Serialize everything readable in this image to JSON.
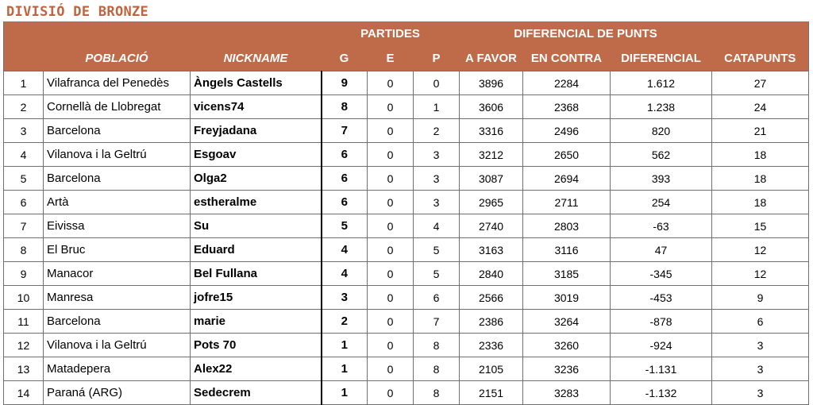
{
  "title": "DIVISIÓ DE BRONZE",
  "header": {
    "group_partides": "PARTIDES",
    "group_diferencial": "DIFERENCIAL DE PUNTS",
    "columns": [
      "",
      "POBLACIÓ",
      "NICKNAME",
      "G",
      "E",
      "P",
      "A FAVOR",
      "EN CONTRA",
      "DIFERENCIAL",
      "CATAPUNTS"
    ]
  },
  "colors": {
    "header_bg": "#bf6a48",
    "title": "#c0633f"
  },
  "rows": [
    {
      "rank": "1",
      "city": "Vilafranca del Penedès",
      "nickname": "Àngels Castells",
      "g": "9",
      "e": "0",
      "p": "0",
      "favor": "3896",
      "contra": "2284",
      "diferencial": "1.612",
      "catapunts": "27"
    },
    {
      "rank": "2",
      "city": "Cornellà de Llobregat",
      "nickname": "vicens74",
      "g": "8",
      "e": "0",
      "p": "1",
      "favor": "3606",
      "contra": "2368",
      "diferencial": "1.238",
      "catapunts": "24"
    },
    {
      "rank": "3",
      "city": "Barcelona",
      "nickname": "Freyjadana",
      "g": "7",
      "e": "0",
      "p": "2",
      "favor": "3316",
      "contra": "2496",
      "diferencial": "820",
      "catapunts": "21"
    },
    {
      "rank": "4",
      "city": "Vilanova i la Geltrú",
      "nickname": "Esgoav",
      "g": "6",
      "e": "0",
      "p": "3",
      "favor": "3212",
      "contra": "2650",
      "diferencial": "562",
      "catapunts": "18"
    },
    {
      "rank": "5",
      "city": "Barcelona",
      "nickname": "Olga2",
      "g": "6",
      "e": "0",
      "p": "3",
      "favor": "3087",
      "contra": "2694",
      "diferencial": "393",
      "catapunts": "18"
    },
    {
      "rank": "6",
      "city": "Artà",
      "nickname": "estheralme",
      "g": "6",
      "e": "0",
      "p": "3",
      "favor": "2965",
      "contra": "2711",
      "diferencial": "254",
      "catapunts": "18"
    },
    {
      "rank": "7",
      "city": "Eivissa",
      "nickname": "Su",
      "g": "5",
      "e": "0",
      "p": "4",
      "favor": "2740",
      "contra": "2803",
      "diferencial": "-63",
      "catapunts": "15"
    },
    {
      "rank": "8",
      "city": "El Bruc",
      "nickname": "Eduard",
      "g": "4",
      "e": "0",
      "p": "5",
      "favor": "3163",
      "contra": "3116",
      "diferencial": "47",
      "catapunts": "12"
    },
    {
      "rank": "9",
      "city": "Manacor",
      "nickname": "Bel Fullana",
      "g": "4",
      "e": "0",
      "p": "5",
      "favor": "2840",
      "contra": "3185",
      "diferencial": "-345",
      "catapunts": "12"
    },
    {
      "rank": "10",
      "city": "Manresa",
      "nickname": "jofre15",
      "g": "3",
      "e": "0",
      "p": "6",
      "favor": "2566",
      "contra": "3019",
      "diferencial": "-453",
      "catapunts": "9"
    },
    {
      "rank": "11",
      "city": "Barcelona",
      "nickname": "marie",
      "g": "2",
      "e": "0",
      "p": "7",
      "favor": "2386",
      "contra": "3264",
      "diferencial": "-878",
      "catapunts": "6"
    },
    {
      "rank": "12",
      "city": "Vilanova i la Geltrú",
      "nickname": "Pots 70",
      "g": "1",
      "e": "0",
      "p": "8",
      "favor": "2336",
      "contra": "3260",
      "diferencial": "-924",
      "catapunts": "3"
    },
    {
      "rank": "13",
      "city": "Matadepera",
      "nickname": "Alex22",
      "g": "1",
      "e": "0",
      "p": "8",
      "favor": "2105",
      "contra": "3236",
      "diferencial": "-1.131",
      "catapunts": "3"
    },
    {
      "rank": "14",
      "city": "Paraná (ARG)",
      "nickname": "Sedecrem",
      "g": "1",
      "e": "0",
      "p": "8",
      "favor": "2151",
      "contra": "3283",
      "diferencial": "-1.132",
      "catapunts": "3"
    }
  ]
}
